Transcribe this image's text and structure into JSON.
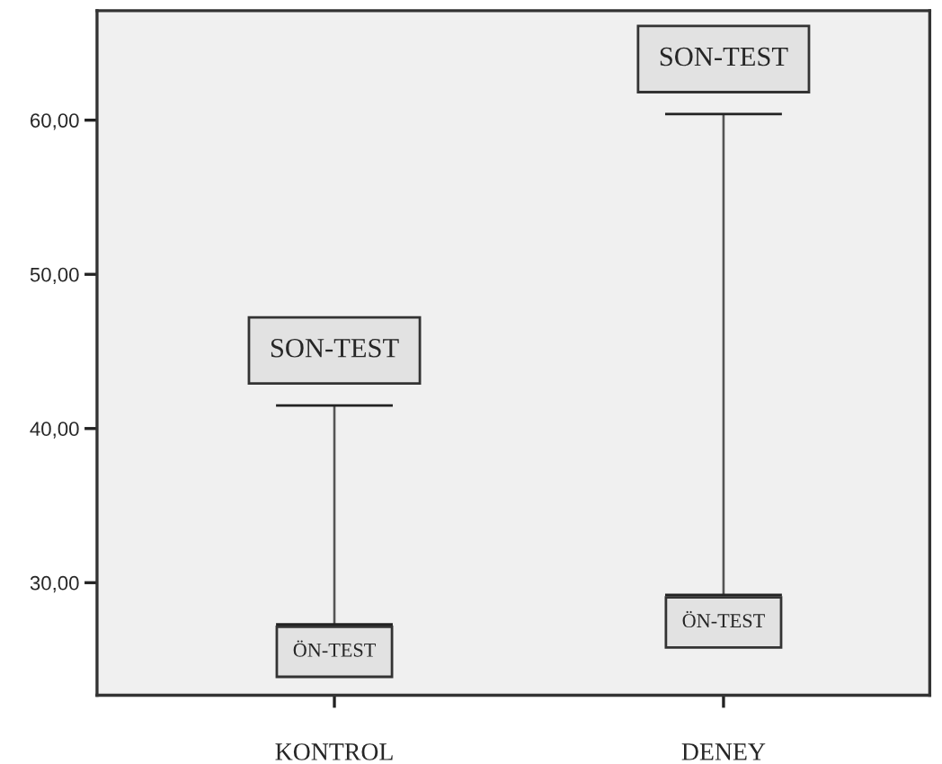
{
  "chart_data": {
    "type": "bar",
    "categories": [
      "KONTROL",
      "DENEY"
    ],
    "base": [
      27.3,
      29.2
    ],
    "values": [
      14.2,
      31.2
    ],
    "color": "#555555",
    "ylim": [
      22.7,
      67.1
    ],
    "yticks": [
      {
        "value": 30,
        "label": "30,00"
      },
      {
        "value": 40,
        "label": "40,00"
      },
      {
        "value": 50,
        "label": "50,00"
      },
      {
        "value": 60,
        "label": "60,00"
      }
    ],
    "grid": false,
    "legend": false,
    "annotations": [
      {
        "text": "SON-TEST",
        "x": "KONTROL",
        "y": 41.5
      },
      {
        "text": "ÖN-TEST",
        "x": "KONTROL",
        "y": 27.3
      },
      {
        "text": "SON-TEST",
        "x": "DENEY",
        "y": 60.4
      },
      {
        "text": "ÖN-TEST",
        "x": "DENEY",
        "y": 29.2
      }
    ]
  }
}
